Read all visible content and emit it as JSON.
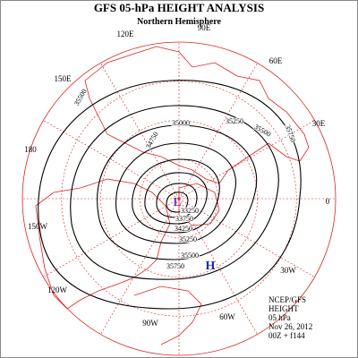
{
  "header": {
    "title": "GFS 05-hPa HEIGHT ANALYSIS",
    "subtitle": "Northern Hemisphere"
  },
  "longitude_labels": [
    "90E",
    "120E",
    "60E",
    "150E",
    "30E",
    "180",
    "0",
    "150W",
    "30W",
    "120W",
    "60W",
    "90W"
  ],
  "contour_labels": [
    "35500",
    "35000",
    "35250",
    "35500",
    "35750",
    "34750",
    "35750",
    "35500",
    "35250",
    "34250",
    "33750",
    "33250"
  ],
  "pressure_centers": [
    "L",
    "H"
  ],
  "info": [
    "NCEP/GFS",
    "HEIGHT",
    "05 hPa",
    "Nov 26, 2012",
    "00Z + f144"
  ]
}
